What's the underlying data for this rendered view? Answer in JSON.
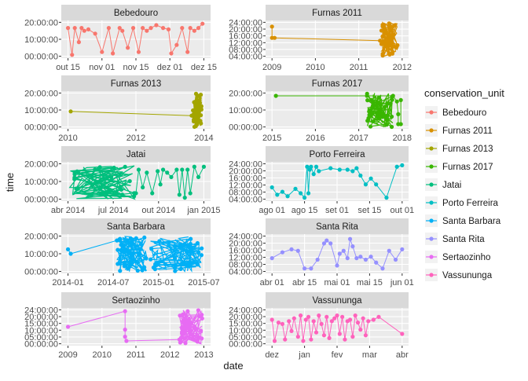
{
  "chart_data": {
    "type": "line",
    "xlabel": "date",
    "ylabel": "time",
    "legend": {
      "title": "conservation_unit",
      "position": "right",
      "entries": [
        "Bebedouro",
        "Furnas 2011",
        "Furnas 2013",
        "Furnas 2017",
        "Jatai",
        "Porto Ferreira",
        "Santa Barbara",
        "Santa Rita",
        "Sertaozinho",
        "Vassununga"
      ],
      "colors": [
        "#F8766D",
        "#D89000",
        "#A3A500",
        "#39B600",
        "#00BF7D",
        "#00BFC4",
        "#00B0F6",
        "#9590FF",
        "#E76BF3",
        "#FF62BC"
      ]
    },
    "panels": [
      {
        "name": "Bebedouro",
        "color": "#F8766D",
        "xticks": [
          "out 15",
          "nov 01",
          "nov 15",
          "dez 01",
          "dez 15"
        ],
        "yticks": [
          "00:00:00",
          "10:00:00",
          "20:00:00"
        ],
        "ylim": [
          0,
          24
        ],
        "x": [
          0,
          0.03,
          0.05,
          0.08,
          0.1,
          0.12,
          0.15,
          0.2,
          0.25,
          0.3,
          0.33,
          0.38,
          0.4,
          0.44,
          0.48,
          0.52,
          0.55,
          0.58,
          0.61,
          0.65,
          0.7,
          0.74,
          0.76,
          0.8,
          0.84,
          0.88,
          0.9,
          0.93,
          0.96,
          0.99
        ],
        "y": [
          20,
          1,
          20,
          10,
          20,
          18,
          19,
          16,
          3,
          20,
          2,
          20,
          18,
          6,
          20,
          3,
          20,
          18,
          20,
          22,
          20,
          19,
          2,
          8,
          20,
          3,
          20,
          18,
          20,
          23
        ]
      },
      {
        "name": "Furnas 2011",
        "color": "#D89000",
        "xticks": [
          "2009",
          "2010",
          "2011",
          "2012"
        ],
        "yticks": [
          "04:00:00",
          "08:00:00",
          "12:00:00",
          "16:00:00",
          "20:00:00",
          "24:00:00"
        ],
        "ylim": [
          0,
          24
        ],
        "dense": [
          0.84,
          0.97,
          0,
          24
        ],
        "x": [
          0,
          0,
          0.02,
          0.83,
          0.85
        ],
        "y": [
          21,
          13,
          13,
          11,
          14
        ]
      },
      {
        "name": "Furnas 2013",
        "color": "#A3A500",
        "xticks": [
          "2010",
          "2012",
          "2014"
        ],
        "yticks": [
          "00:00:00",
          "10:00:00",
          "20:00:00"
        ],
        "ylim": [
          0,
          24
        ],
        "dense": [
          0.92,
          0.985,
          0,
          24
        ],
        "x": [
          0.02,
          0.91
        ],
        "y": [
          11,
          8
        ]
      },
      {
        "name": "Furnas 2017",
        "color": "#39B600",
        "xticks": [
          "2015",
          "2016",
          "2017",
          "2018"
        ],
        "yticks": [
          "00:00:00",
          "10:00:00",
          "20:00:00"
        ],
        "ylim": [
          0,
          24
        ],
        "dense": [
          0.73,
          0.93,
          0,
          24
        ],
        "x": [
          0.03,
          0.73,
          0.93,
          0.96,
          0.97,
          0.97,
          0.99,
          0.99
        ],
        "y": [
          22,
          22,
          22,
          18,
          9,
          2,
          2,
          19
        ]
      },
      {
        "name": "Jatai",
        "color": "#00BF7D",
        "xticks": [
          "abr 2014",
          "jul 2014",
          "out 2014",
          "jan 2015"
        ],
        "yticks": [
          "00:00:00",
          "10:00:00",
          "20:00:00"
        ],
        "ylim": [
          0,
          24
        ],
        "dense": [
          0.0,
          0.5,
          0,
          23
        ],
        "x": [
          0.5,
          0.52,
          0.55,
          0.58,
          0.62,
          0.66,
          0.68,
          0.7,
          0.73,
          0.76,
          0.8,
          0.82,
          0.84,
          0.86,
          0.88,
          0.9,
          0.93,
          0.96,
          1.0
        ],
        "y": [
          4,
          20,
          8,
          18,
          4,
          19,
          10,
          20,
          18,
          15,
          20,
          3,
          20,
          1,
          20,
          4,
          22,
          15,
          22
        ]
      },
      {
        "name": "Porto Ferreira",
        "color": "#00BFC4",
        "xticks": [
          "ago 01",
          "ago 15",
          "set 01",
          "set 15",
          "out 01"
        ],
        "yticks": [
          "04:00:00",
          "08:00:00",
          "12:00:00",
          "16:00:00",
          "20:00:00",
          "24:00:00"
        ],
        "ylim": [
          0,
          24
        ],
        "x": [
          0,
          0.04,
          0.08,
          0.12,
          0.18,
          0.22,
          0.25,
          0.27,
          0.28,
          0.29,
          0.3,
          0.32,
          0.34,
          0.36,
          0.45,
          0.52,
          0.58,
          0.62,
          0.65,
          0.68,
          0.72,
          0.76,
          0.8,
          0.88,
          0.96,
          1.0
        ],
        "y": [
          8,
          3,
          5,
          2,
          7,
          4,
          1,
          22,
          4,
          20,
          22,
          17,
          22,
          19,
          21,
          20,
          20,
          19,
          21,
          16,
          10,
          14,
          10,
          1,
          22,
          23
        ]
      },
      {
        "name": "Santa Barbara",
        "color": "#00B0F6",
        "xticks": [
          "2014-01",
          "2014-07",
          "2015-01",
          "2015-07"
        ],
        "yticks": [
          "00:00:00",
          "10:00:00",
          "20:00:00"
        ],
        "ylim": [
          0,
          24
        ],
        "dense": [
          0.36,
          0.58,
          0,
          24
        ],
        "dense2": [
          0.6,
          0.99,
          0,
          24
        ],
        "x": [
          0,
          0.02,
          0.36
        ],
        "y": [
          15,
          12,
          21
        ]
      },
      {
        "name": "Santa Rita",
        "color": "#9590FF",
        "xticks": [
          "abr 01",
          "abr 15",
          "mai 01",
          "mai 15",
          "jun 01"
        ],
        "yticks": [
          "04:00:00",
          "08:00:00",
          "12:00:00",
          "16:00:00",
          "20:00:00",
          "24:00:00"
        ],
        "ylim": [
          0,
          24
        ],
        "x": [
          0,
          0.08,
          0.15,
          0.2,
          0.25,
          0.3,
          0.35,
          0.4,
          0.42,
          0.45,
          0.5,
          0.52,
          0.55,
          0.58,
          0.6,
          0.62,
          0.65,
          0.68,
          0.72,
          0.76,
          0.8,
          0.85,
          0.9,
          0.95,
          1.0
        ],
        "y": [
          9,
          13,
          15,
          14,
          2,
          2,
          8,
          19,
          21,
          19,
          4,
          12,
          14,
          9,
          22,
          17,
          9,
          10,
          8,
          10,
          6,
          2,
          14,
          8,
          15
        ]
      },
      {
        "name": "Sertaozinho",
        "color": "#E76BF3",
        "xticks": [
          "2009",
          "2010",
          "2011",
          "2012",
          "2013"
        ],
        "yticks": [
          "00:00:00",
          "05:00:00",
          "10:00:00",
          "15:00:00",
          "20:00:00",
          "24:00:00"
        ],
        "ylim": [
          0,
          24
        ],
        "dense": [
          0.82,
          0.99,
          0,
          24
        ],
        "x": [
          0,
          0.42,
          0.42,
          0.42,
          0.43,
          0.82
        ],
        "y": [
          12,
          23,
          10,
          5,
          2,
          3
        ]
      },
      {
        "name": "Vassununga",
        "color": "#FF62BC",
        "xticks": [
          "dez",
          "jan",
          "fev",
          "mar",
          "abr"
        ],
        "yticks": [
          "00:00:00",
          "05:00:00",
          "10:00:00",
          "15:00:00",
          "20:00:00",
          "24:00:00"
        ],
        "ylim": [
          0,
          24
        ],
        "x": [
          0,
          0.02,
          0.05,
          0.08,
          0.1,
          0.13,
          0.15,
          0.17,
          0.2,
          0.22,
          0.24,
          0.26,
          0.28,
          0.3,
          0.32,
          0.34,
          0.36,
          0.38,
          0.4,
          0.42,
          0.44,
          0.46,
          0.48,
          0.5,
          0.52,
          0.54,
          0.56,
          0.58,
          0.6,
          0.62,
          0.64,
          0.66,
          0.68,
          0.7,
          0.72,
          0.74,
          0.78,
          0.82,
          1.0
        ],
        "y": [
          17,
          2,
          15,
          14,
          3,
          16,
          9,
          18,
          5,
          20,
          2,
          17,
          19,
          3,
          16,
          8,
          20,
          14,
          6,
          19,
          4,
          16,
          18,
          20,
          7,
          19,
          3,
          16,
          17,
          5,
          20,
          15,
          10,
          18,
          6,
          16,
          17,
          19,
          7
        ]
      }
    ]
  }
}
